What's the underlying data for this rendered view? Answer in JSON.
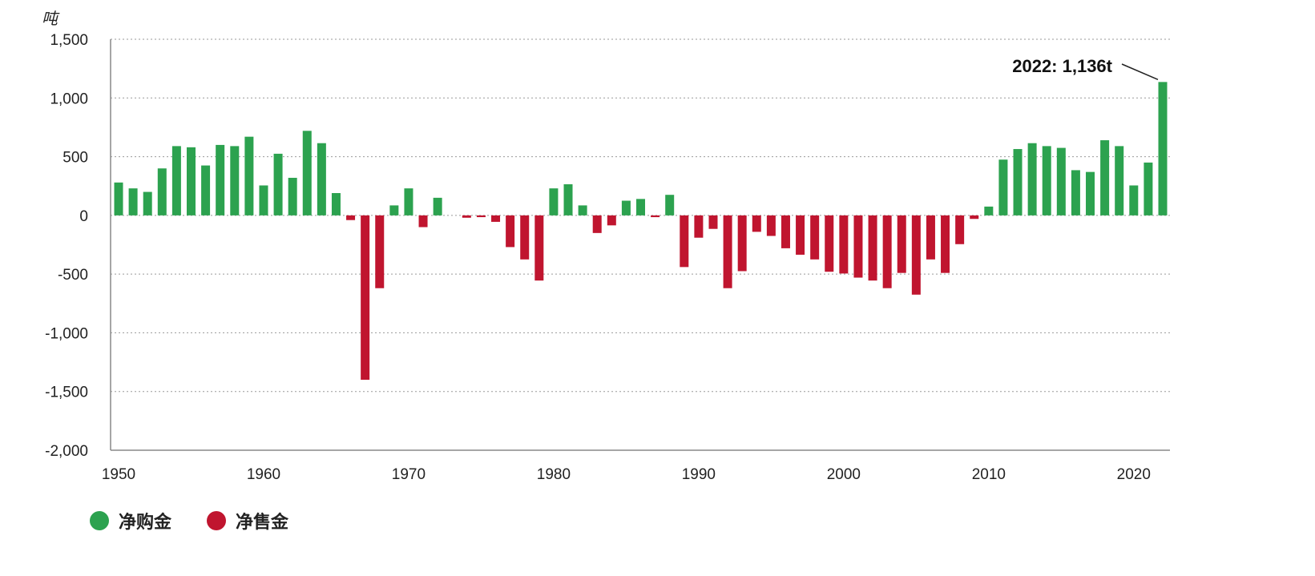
{
  "chart_data": {
    "type": "bar",
    "unit_label": "吨",
    "ylim": [
      -2000,
      1500
    ],
    "yticks": [
      1500,
      1000,
      500,
      0,
      -500,
      -1000,
      -1500,
      -2000
    ],
    "ytick_labels": [
      "1,500",
      "1,000",
      "500",
      "0",
      "-500",
      "-1,000",
      "-1,500",
      "-2,000"
    ],
    "xlim": [
      1950,
      2022
    ],
    "xticks": [
      1950,
      1960,
      1970,
      1980,
      1990,
      2000,
      2010,
      2020
    ],
    "xtick_labels": [
      "1950",
      "1960",
      "1970",
      "1980",
      "1990",
      "2000",
      "2010",
      "2020"
    ],
    "grid": true,
    "colors": {
      "positive": "#2ca24f",
      "negative": "#c0152f"
    },
    "x": [
      1950,
      1951,
      1952,
      1953,
      1954,
      1955,
      1956,
      1957,
      1958,
      1959,
      1960,
      1961,
      1962,
      1963,
      1964,
      1965,
      1966,
      1967,
      1968,
      1969,
      1970,
      1971,
      1972,
      1973,
      1974,
      1975,
      1976,
      1977,
      1978,
      1979,
      1980,
      1981,
      1982,
      1983,
      1984,
      1985,
      1986,
      1987,
      1988,
      1989,
      1990,
      1991,
      1992,
      1993,
      1994,
      1995,
      1996,
      1997,
      1998,
      1999,
      2000,
      2001,
      2002,
      2003,
      2004,
      2005,
      2006,
      2007,
      2008,
      2009,
      2010,
      2011,
      2012,
      2013,
      2014,
      2015,
      2016,
      2017,
      2018,
      2019,
      2020,
      2021,
      2022
    ],
    "values": [
      280,
      230,
      200,
      400,
      590,
      580,
      425,
      600,
      590,
      670,
      255,
      525,
      320,
      720,
      615,
      190,
      -40,
      -1400,
      -620,
      85,
      230,
      -100,
      150,
      0,
      -20,
      -15,
      -55,
      -270,
      -375,
      -555,
      230,
      265,
      85,
      -150,
      -85,
      125,
      140,
      -15,
      175,
      -440,
      -190,
      -115,
      -620,
      -475,
      -140,
      -175,
      -280,
      -335,
      -375,
      -480,
      -495,
      -530,
      -555,
      -620,
      -490,
      -675,
      -375,
      -490,
      -245,
      -30,
      75,
      475,
      565,
      615,
      590,
      575,
      385,
      370,
      640,
      590,
      255,
      450,
      1136
    ],
    "annotation": "2022: 1,136t",
    "legend": [
      "净购金",
      "净售金"
    ]
  }
}
